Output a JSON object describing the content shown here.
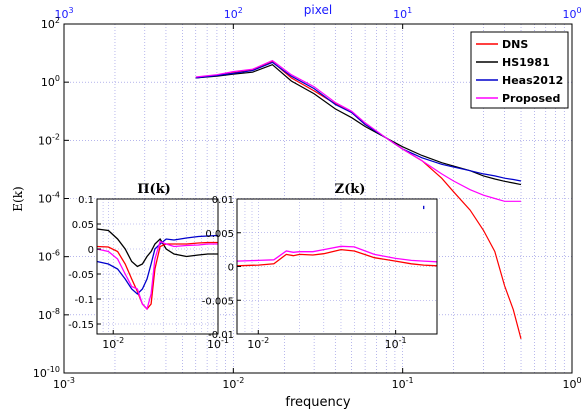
{
  "chart_data": [
    {
      "type": "line",
      "name": "main",
      "xlabel": "frequency",
      "ylabel": "E(k)",
      "xscale": "log",
      "yscale": "log",
      "xlim": [
        0.001,
        1
      ],
      "ylim": [
        1e-10,
        100
      ],
      "x_ticks": [
        "10^-3",
        "10^-2",
        "10^-1",
        "10^0"
      ],
      "y_ticks": [
        "10^-10",
        "10^-8",
        "10^-6",
        "10^-4",
        "10^-2",
        "10^0",
        "10^2"
      ],
      "top_axis": {
        "label": "pixel",
        "ticks": [
          "10^3",
          "10^2",
          "10^1",
          "10^0"
        ]
      },
      "grid": true,
      "legend": "top-right",
      "series": [
        {
          "name": "DNS",
          "color": "#ff0000",
          "x": [
            0.006,
            0.008,
            0.01,
            0.013,
            0.017,
            0.022,
            0.03,
            0.04,
            0.05,
            0.06,
            0.08,
            0.1,
            0.13,
            0.17,
            0.2,
            0.25,
            0.3,
            0.35,
            0.4,
            0.45,
            0.5
          ],
          "y": [
            1.4,
            1.7,
            2.1,
            2.6,
            5.0,
            1.4,
            0.5,
            0.18,
            0.09,
            0.035,
            0.012,
            0.005,
            0.002,
            0.0005,
            0.00017,
            4e-05,
            8e-06,
            1.5e-06,
            1e-07,
            1.5e-08,
            1.5e-09
          ]
        },
        {
          "name": "HS1981",
          "color": "#000000",
          "x": [
            0.006,
            0.008,
            0.01,
            0.013,
            0.017,
            0.022,
            0.03,
            0.04,
            0.05,
            0.06,
            0.08,
            0.1,
            0.13,
            0.17,
            0.2,
            0.25,
            0.3,
            0.35,
            0.4,
            0.45,
            0.5
          ],
          "y": [
            1.4,
            1.6,
            1.9,
            2.2,
            4.0,
            1.1,
            0.4,
            0.12,
            0.06,
            0.03,
            0.012,
            0.006,
            0.003,
            0.0017,
            0.0013,
            0.0009,
            0.0006,
            0.00047,
            0.00039,
            0.00034,
            0.0003
          ]
        },
        {
          "name": "Heas2012",
          "color": "#0000cc",
          "x": [
            0.006,
            0.008,
            0.01,
            0.013,
            0.017,
            0.022,
            0.03,
            0.04,
            0.05,
            0.06,
            0.08,
            0.1,
            0.13,
            0.17,
            0.2,
            0.25,
            0.3,
            0.35,
            0.4,
            0.45,
            0.5
          ],
          "y": [
            1.4,
            1.7,
            2.0,
            2.5,
            4.8,
            1.6,
            0.6,
            0.17,
            0.09,
            0.035,
            0.012,
            0.005,
            0.0025,
            0.0015,
            0.0012,
            0.0009,
            0.0007,
            0.0006,
            0.0005,
            0.00045,
            0.0004
          ]
        },
        {
          "name": "Proposed",
          "color": "#ff00ff",
          "x": [
            0.006,
            0.008,
            0.01,
            0.013,
            0.017,
            0.022,
            0.03,
            0.04,
            0.05,
            0.06,
            0.08,
            0.1,
            0.13,
            0.17,
            0.2,
            0.25,
            0.3,
            0.35,
            0.4,
            0.45,
            0.5
          ],
          "y": [
            1.5,
            1.8,
            2.3,
            2.8,
            5.5,
            1.8,
            0.7,
            0.2,
            0.1,
            0.04,
            0.012,
            0.005,
            0.002,
            0.0007,
            0.0004,
            0.0002,
            0.00013,
            0.0001,
            8e-05,
            8e-05,
            8e-05
          ]
        }
      ]
    },
    {
      "type": "line",
      "name": "inset-pi",
      "title": "Π(k)",
      "xscale": "log",
      "xlim": [
        0.007,
        0.1
      ],
      "ylim": [
        -0.17,
        0.1
      ],
      "x_ticks": [
        "10^-2",
        "10^-1"
      ],
      "y_ticks": [
        "0.1",
        "0.05",
        "0",
        "-0.05",
        "-0.1",
        "-0.15"
      ],
      "series": [
        {
          "name": "HS1981",
          "color": "#000000",
          "x": [
            0.007,
            0.009,
            0.011,
            0.013,
            0.015,
            0.017,
            0.019,
            0.021,
            0.023,
            0.025,
            0.028,
            0.032,
            0.038,
            0.05,
            0.065,
            0.08,
            0.1
          ],
          "y": [
            0.04,
            0.037,
            0.02,
            0.0,
            -0.025,
            -0.035,
            -0.03,
            -0.015,
            -0.005,
            0.01,
            0.02,
            0.0,
            -0.01,
            -0.015,
            -0.012,
            -0.01,
            -0.01
          ]
        },
        {
          "name": "DNS",
          "color": "#ff0000",
          "x": [
            0.007,
            0.009,
            0.011,
            0.013,
            0.015,
            0.017,
            0.019,
            0.021,
            0.023,
            0.025,
            0.028,
            0.032,
            0.038,
            0.05,
            0.065,
            0.08,
            0.1
          ],
          "y": [
            0.005,
            0.004,
            -0.005,
            -0.03,
            -0.06,
            -0.085,
            -0.11,
            -0.12,
            -0.11,
            -0.04,
            0.005,
            0.01,
            0.01,
            0.01,
            0.012,
            0.013,
            0.013
          ]
        },
        {
          "name": "Heas2012",
          "color": "#0000cc",
          "x": [
            0.007,
            0.009,
            0.011,
            0.013,
            0.015,
            0.017,
            0.019,
            0.021,
            0.023,
            0.025,
            0.028,
            0.032,
            0.038,
            0.05,
            0.065,
            0.08,
            0.1
          ],
          "y": [
            -0.025,
            -0.03,
            -0.04,
            -0.06,
            -0.08,
            -0.09,
            -0.08,
            -0.06,
            -0.03,
            0.0,
            0.01,
            0.02,
            0.018,
            0.022,
            0.025,
            0.026,
            0.027
          ]
        },
        {
          "name": "Proposed",
          "color": "#ff00ff",
          "x": [
            0.007,
            0.009,
            0.011,
            0.013,
            0.015,
            0.017,
            0.019,
            0.021,
            0.023,
            0.025,
            0.028,
            0.032,
            0.038,
            0.05,
            0.065,
            0.08,
            0.1
          ],
          "y": [
            0.0,
            -0.005,
            -0.02,
            -0.05,
            -0.075,
            -0.08,
            -0.11,
            -0.12,
            -0.09,
            -0.02,
            0.015,
            0.01,
            0.005,
            0.007,
            0.008,
            0.01,
            0.01
          ]
        }
      ]
    },
    {
      "type": "line",
      "name": "inset-z",
      "title": "Z(k)",
      "xscale": "log",
      "xlim": [
        0.007,
        0.2
      ],
      "ylim": [
        -0.01,
        0.01
      ],
      "x_ticks": [
        "10^-2",
        "10^-1"
      ],
      "y_ticks": [
        "0.01",
        "0.005",
        "0",
        "-0.005",
        "-0.01"
      ],
      "series": [
        {
          "name": "DNS",
          "color": "#ff0000",
          "x": [
            0.007,
            0.01,
            0.013,
            0.016,
            0.018,
            0.02,
            0.025,
            0.03,
            0.04,
            0.05,
            0.07,
            0.1,
            0.13,
            0.16,
            0.2
          ],
          "y": [
            0.0001,
            0.0002,
            0.0004,
            0.0018,
            0.0016,
            0.0018,
            0.0017,
            0.0019,
            0.0025,
            0.0023,
            0.0013,
            0.0008,
            0.0004,
            0.0002,
            0.0001
          ]
        },
        {
          "name": "Proposed",
          "color": "#ff00ff",
          "x": [
            0.007,
            0.01,
            0.013,
            0.016,
            0.018,
            0.02,
            0.025,
            0.03,
            0.04,
            0.05,
            0.07,
            0.1,
            0.13,
            0.16,
            0.2
          ],
          "y": [
            0.0008,
            0.0009,
            0.001,
            0.0023,
            0.0021,
            0.0022,
            0.0022,
            0.0025,
            0.003,
            0.0029,
            0.0018,
            0.0012,
            0.0009,
            0.0008,
            0.0007
          ]
        },
        {
          "name": "Heas2012",
          "color": "#0000cc",
          "x": [
            0.16,
            0.16
          ],
          "y": [
            0.009,
            0.0085
          ]
        }
      ]
    }
  ]
}
